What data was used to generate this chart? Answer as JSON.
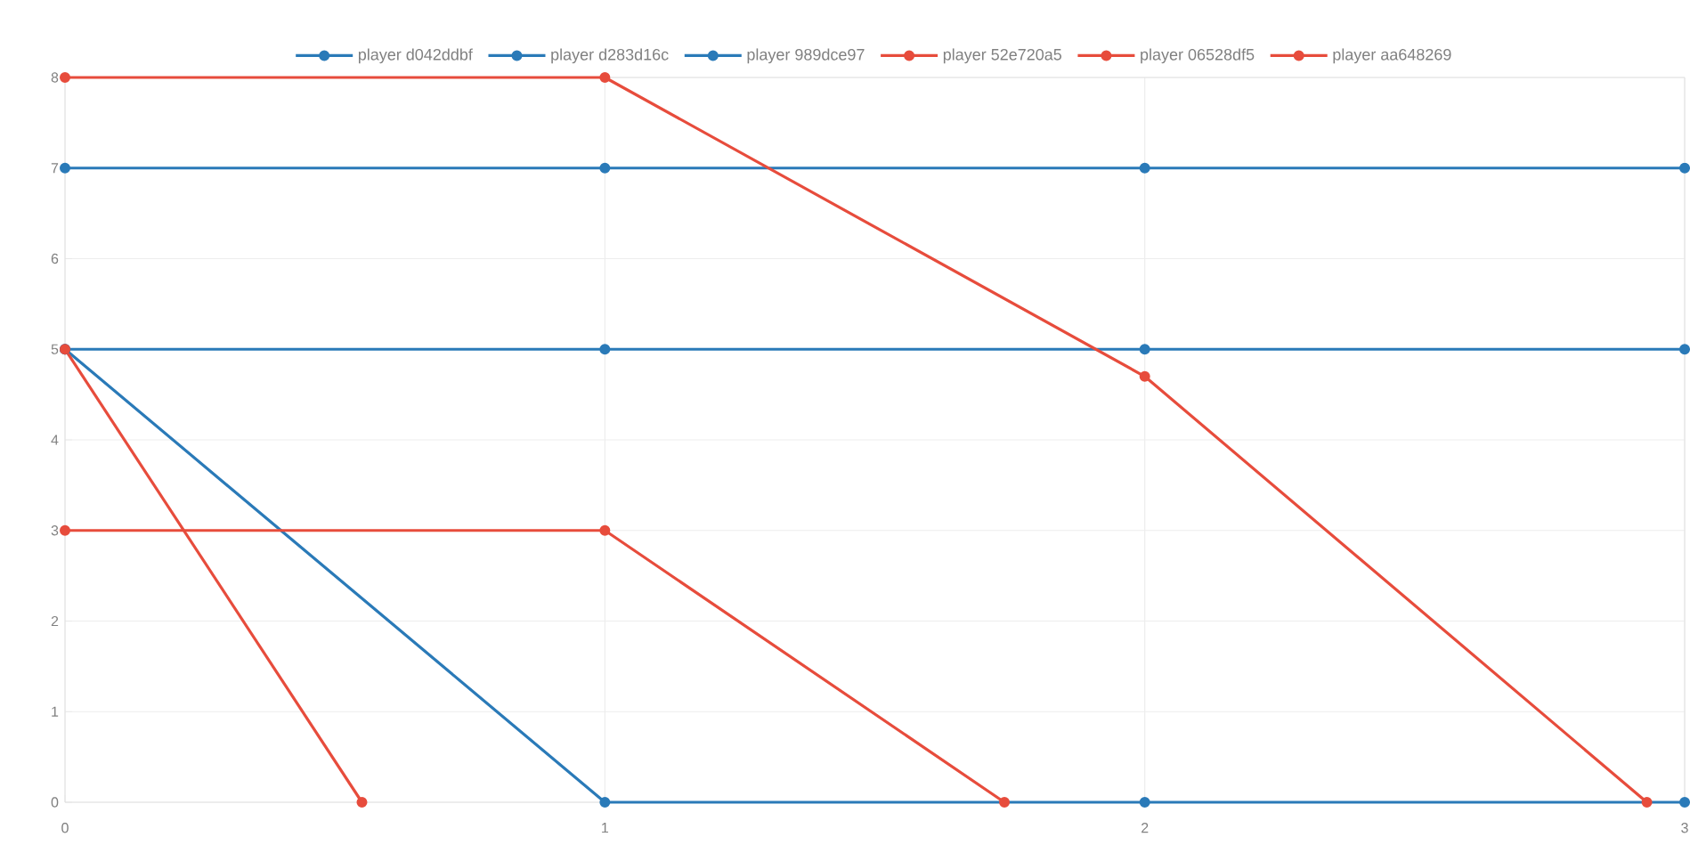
{
  "chart_data": {
    "type": "line",
    "xlim": [
      0,
      3
    ],
    "ylim": [
      0,
      8
    ],
    "xticks": [
      0,
      1,
      2,
      3
    ],
    "yticks": [
      0,
      1,
      2,
      3,
      4,
      5,
      6,
      7,
      8
    ],
    "grid": true,
    "legend": "top",
    "marker": "circle",
    "line_style": "solid",
    "series": [
      {
        "name": "player d042ddbf",
        "color": "#2a7ab8",
        "x": [
          0,
          1,
          2,
          3
        ],
        "values": [
          7,
          7,
          7,
          7
        ]
      },
      {
        "name": "player d283d16c",
        "color": "#2a7ab8",
        "x": [
          0,
          1,
          2,
          3
        ],
        "values": [
          5,
          5,
          5,
          5
        ]
      },
      {
        "name": "player 989dce97",
        "color": "#2a7ab8",
        "x": [
          0,
          1,
          2,
          3
        ],
        "values": [
          5,
          0,
          0,
          0
        ]
      },
      {
        "name": "player 52e720a5",
        "color": "#e74c3c",
        "x": [
          0,
          1,
          2,
          2.93
        ],
        "values": [
          8,
          8,
          4.7,
          0
        ]
      },
      {
        "name": "player 06528df5",
        "color": "#e74c3c",
        "x": [
          0,
          1,
          1.74
        ],
        "values": [
          3,
          3,
          0
        ]
      },
      {
        "name": "player aa648269",
        "color": "#e74c3c",
        "x": [
          0,
          0.55
        ],
        "values": [
          5,
          0
        ]
      }
    ]
  }
}
